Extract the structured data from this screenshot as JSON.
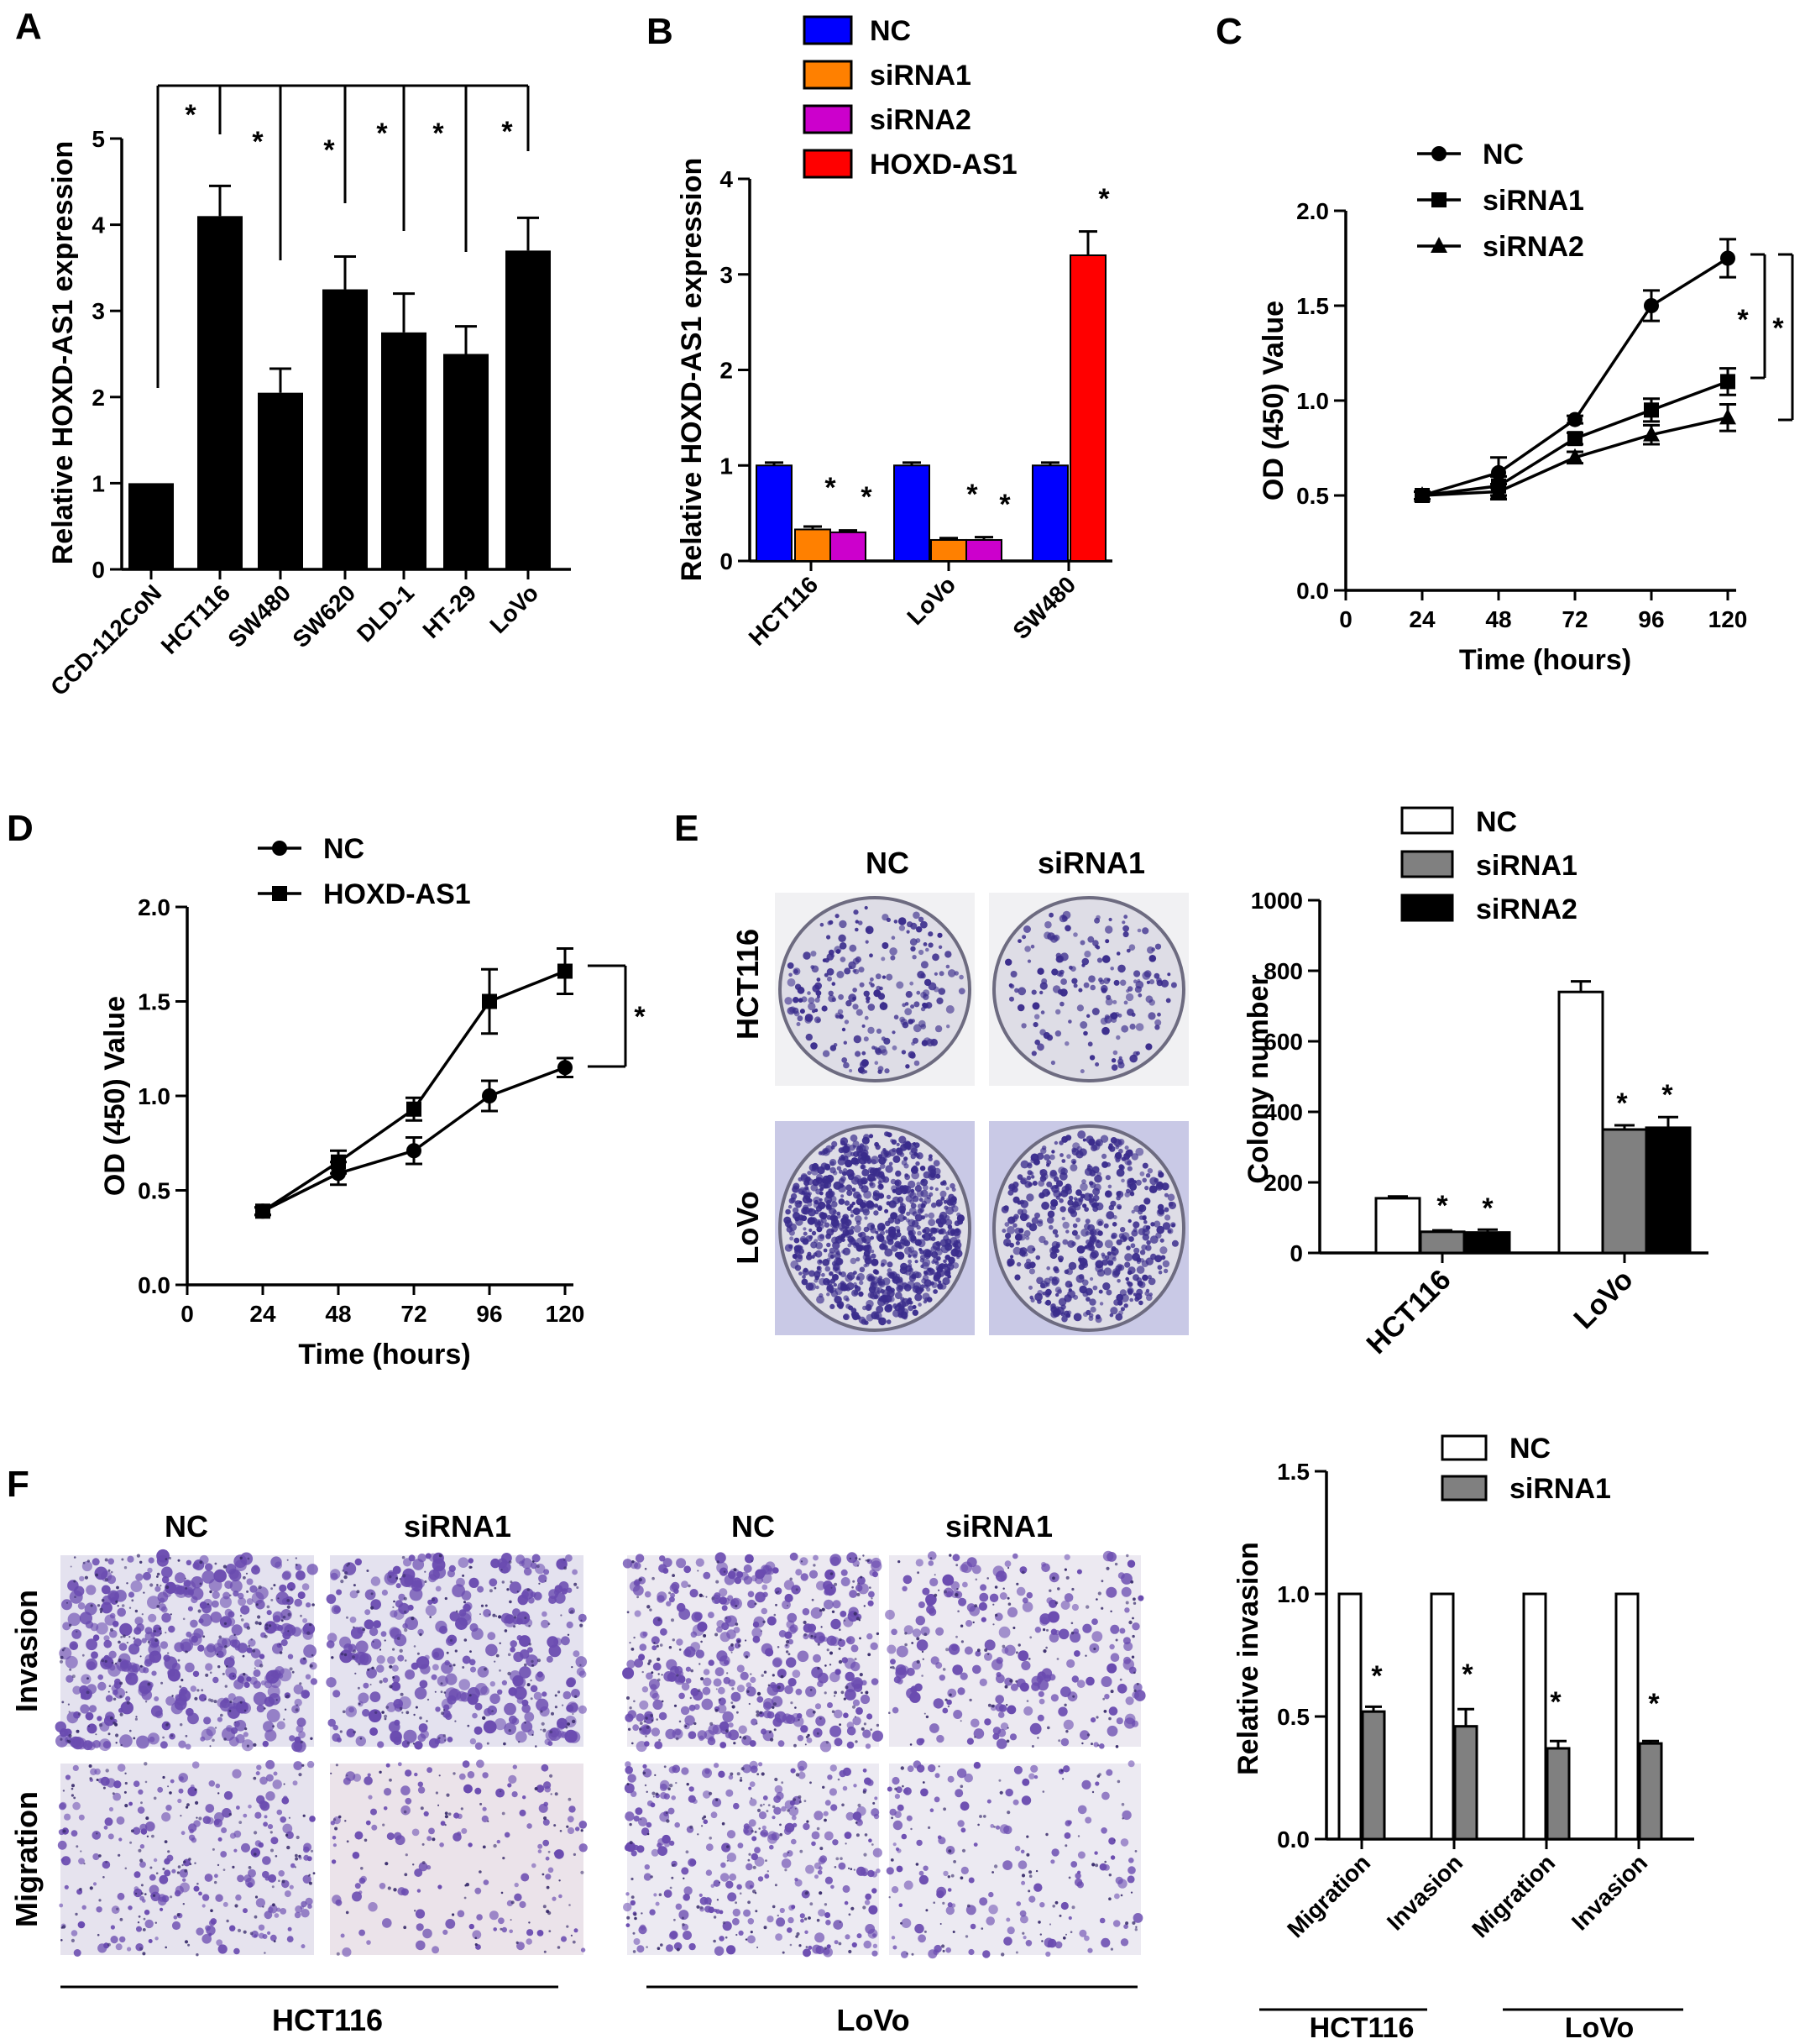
{
  "panels": {
    "A": "A",
    "B": "B",
    "C": "C",
    "D": "D",
    "E": "E",
    "F": "F"
  },
  "chart_data": [
    {
      "id": "A",
      "type": "bar",
      "ylabel": "Relative HOXD-AS1 expression",
      "ylim": [
        0,
        5
      ],
      "yticks": [
        "0",
        "1",
        "2",
        "3",
        "4",
        "5"
      ],
      "categories": [
        "CCD-112CoN",
        "HCT116",
        "SW480",
        "SW620",
        "DLD-1",
        "HT-29",
        "LoVo"
      ],
      "values": [
        1.0,
        4.1,
        2.05,
        3.25,
        2.75,
        2.5,
        3.7
      ],
      "errors": [
        0,
        0.35,
        0.28,
        0.38,
        0.45,
        0.32,
        0.38
      ],
      "bar_color": "#000000",
      "annotations": [
        "*",
        "*",
        "*",
        "*",
        "*",
        "*"
      ]
    },
    {
      "id": "B",
      "type": "bar",
      "ylabel": "Relative HOXD-AS1 expression",
      "ylim": [
        0,
        4
      ],
      "yticks": [
        "0",
        "1",
        "2",
        "3",
        "4"
      ],
      "categories": [
        "HCT116",
        "LoVo",
        "SW480"
      ],
      "series": [
        {
          "name": "NC",
          "color": "#0000ff",
          "values": [
            1.0,
            1.0,
            1.0
          ],
          "errors": [
            0.03,
            0.03,
            0.03
          ]
        },
        {
          "name": "siRNA1",
          "color": "#ff8000",
          "values": [
            0.33,
            0.22,
            null
          ],
          "errors": [
            0.03,
            0.02,
            null
          ]
        },
        {
          "name": "siRNA2",
          "color": "#cc00cc",
          "values": [
            0.3,
            0.22,
            null
          ],
          "errors": [
            0.02,
            0.03,
            null
          ]
        },
        {
          "name": "HOXD-AS1",
          "color": "#ff0000",
          "values": [
            null,
            null,
            3.2
          ],
          "errors": [
            null,
            null,
            0.25
          ]
        }
      ],
      "annotations": [
        "*",
        "*",
        "*",
        "*",
        "*"
      ]
    },
    {
      "id": "C",
      "type": "line",
      "xlabel": "Time (hours)",
      "ylabel": "OD (450) Value",
      "xlim": [
        0,
        120
      ],
      "ylim": [
        0,
        2.0
      ],
      "xticks": [
        "0",
        "24",
        "48",
        "72",
        "96",
        "120"
      ],
      "yticks": [
        "0.0",
        "0.5",
        "1.0",
        "1.5",
        "2.0"
      ],
      "x": [
        24,
        48,
        72,
        96,
        120
      ],
      "series": [
        {
          "name": "NC",
          "marker": "circle",
          "values": [
            0.5,
            0.62,
            0.9,
            1.5,
            1.75
          ],
          "errors": [
            0.02,
            0.08,
            0.02,
            0.08,
            0.1
          ]
        },
        {
          "name": "siRNA1",
          "marker": "square",
          "values": [
            0.5,
            0.55,
            0.8,
            0.95,
            1.1
          ],
          "errors": [
            0.02,
            0.05,
            0.03,
            0.06,
            0.07
          ]
        },
        {
          "name": "siRNA2",
          "marker": "triangle",
          "values": [
            0.5,
            0.52,
            0.7,
            0.82,
            0.91
          ],
          "errors": [
            0.02,
            0.04,
            0.03,
            0.05,
            0.07
          ]
        }
      ],
      "annotations": [
        "*",
        "*"
      ]
    },
    {
      "id": "D",
      "type": "line",
      "xlabel": "Time (hours)",
      "ylabel": "OD (450) Value",
      "xlim": [
        0,
        120
      ],
      "ylim": [
        0,
        2.0
      ],
      "xticks": [
        "0",
        "24",
        "48",
        "72",
        "96",
        "120"
      ],
      "yticks": [
        "0.0",
        "0.5",
        "1.0",
        "1.5",
        "2.0"
      ],
      "x": [
        24,
        48,
        72,
        96,
        120
      ],
      "series": [
        {
          "name": "NC",
          "marker": "circle",
          "values": [
            0.39,
            0.59,
            0.71,
            1.0,
            1.15
          ],
          "errors": [
            0.02,
            0.06,
            0.07,
            0.08,
            0.05
          ]
        },
        {
          "name": "HOXD-AS1",
          "marker": "square",
          "values": [
            0.39,
            0.65,
            0.93,
            1.5,
            1.66
          ],
          "errors": [
            0.02,
            0.06,
            0.06,
            0.17,
            0.12
          ]
        }
      ],
      "annotations": [
        "*"
      ]
    },
    {
      "id": "E",
      "type": "bar",
      "ylabel": "Colony number",
      "ylim": [
        0,
        1000
      ],
      "yticks": [
        "0",
        "200",
        "400",
        "600",
        "800",
        "1000"
      ],
      "categories": [
        "HCT116",
        "LoVo"
      ],
      "series": [
        {
          "name": "NC",
          "color": "#ffffff",
          "values": [
            155,
            740
          ],
          "errors": [
            5,
            30
          ]
        },
        {
          "name": "siRNA1",
          "color": "#808080",
          "values": [
            60,
            350
          ],
          "errors": [
            4,
            12
          ]
        },
        {
          "name": "siRNA2",
          "color": "#000000",
          "values": [
            58,
            355
          ],
          "errors": [
            8,
            30
          ]
        }
      ],
      "annotations": [
        "*",
        "*",
        "*",
        "*"
      ]
    },
    {
      "id": "F",
      "type": "bar",
      "ylabel": "Relative invasion",
      "ylim": [
        0,
        1.5
      ],
      "yticks": [
        "0.0",
        "0.5",
        "1.0",
        "1.5"
      ],
      "categories": [
        "Migration",
        "Invasion",
        "Migration",
        "Invasion"
      ],
      "groups": [
        "HCT116",
        "LoVo"
      ],
      "series": [
        {
          "name": "NC",
          "color": "#ffffff",
          "values": [
            1.0,
            1.0,
            1.0,
            1.0
          ],
          "errors": [
            0,
            0,
            0,
            0
          ]
        },
        {
          "name": "siRNA1",
          "color": "#808080",
          "values": [
            0.52,
            0.46,
            0.37,
            0.39
          ],
          "errors": [
            0.02,
            0.07,
            0.03,
            0.01
          ]
        }
      ],
      "annotations": [
        "*",
        "*",
        "*",
        "*"
      ]
    }
  ],
  "photos_E": {
    "col_labels": [
      "NC",
      "siRNA1"
    ],
    "row_labels": [
      "HCT116",
      "LoVo"
    ]
  },
  "photos_F": {
    "col_labels_left": [
      "NC",
      "siRNA1"
    ],
    "col_labels_right": [
      "NC",
      "siRNA1"
    ],
    "row_labels": [
      "Invasion",
      "Migration"
    ],
    "group_labels": [
      "HCT116",
      "LoVo"
    ]
  }
}
